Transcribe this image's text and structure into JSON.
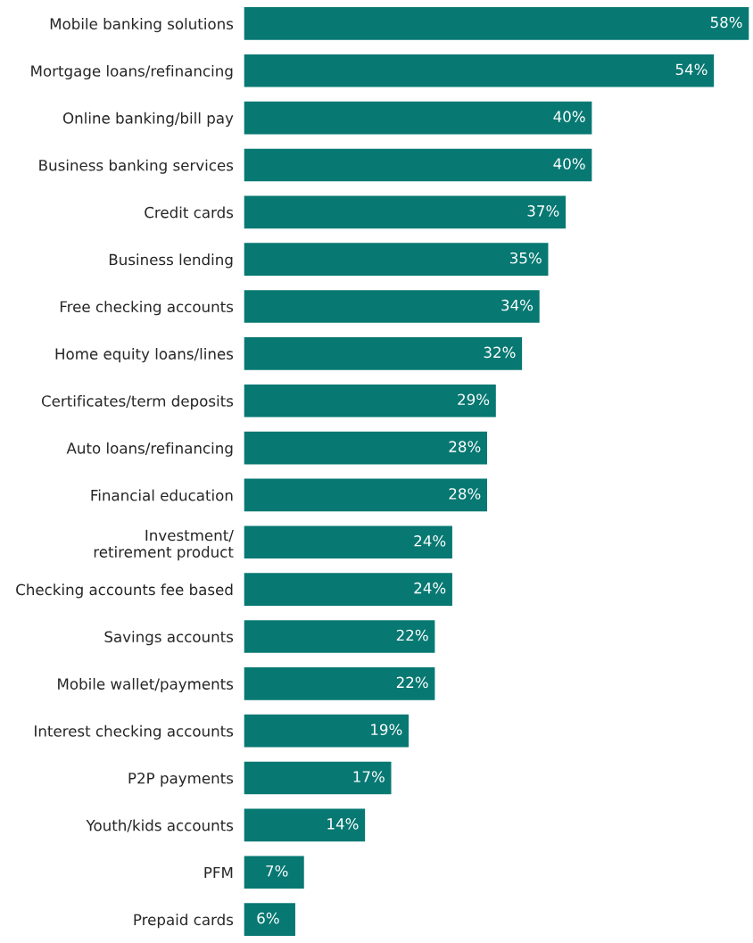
{
  "chart_data": {
    "type": "bar",
    "orientation": "horizontal",
    "categories": [
      "Mobile banking solutions",
      "Mortgage loans/refinancing",
      "Online banking/bill pay",
      "Business banking services",
      "Credit cards",
      "Business lending",
      "Free checking accounts",
      "Home equity loans/lines",
      "Certificates/term deposits",
      "Auto loans/refinancing",
      "Financial education",
      "Investment/\nretirement product",
      "Checking accounts fee based",
      "Savings accounts",
      "Mobile wallet/payments",
      "Interest checking accounts",
      "P2P payments",
      "Youth/kids accounts",
      "PFM",
      "Prepaid cards"
    ],
    "values": [
      58,
      54,
      40,
      40,
      37,
      35,
      34,
      32,
      29,
      28,
      28,
      24,
      24,
      22,
      22,
      19,
      17,
      14,
      7,
      6
    ],
    "value_labels": [
      "58%",
      "54%",
      "40%",
      "40%",
      "37%",
      "35%",
      "34%",
      "32%",
      "29%",
      "28%",
      "28%",
      "24%",
      "24%",
      "22%",
      "22%",
      "19%",
      "17%",
      "14%",
      "7%",
      "6%"
    ],
    "color": "#077872",
    "grid": false,
    "legend": false
  }
}
